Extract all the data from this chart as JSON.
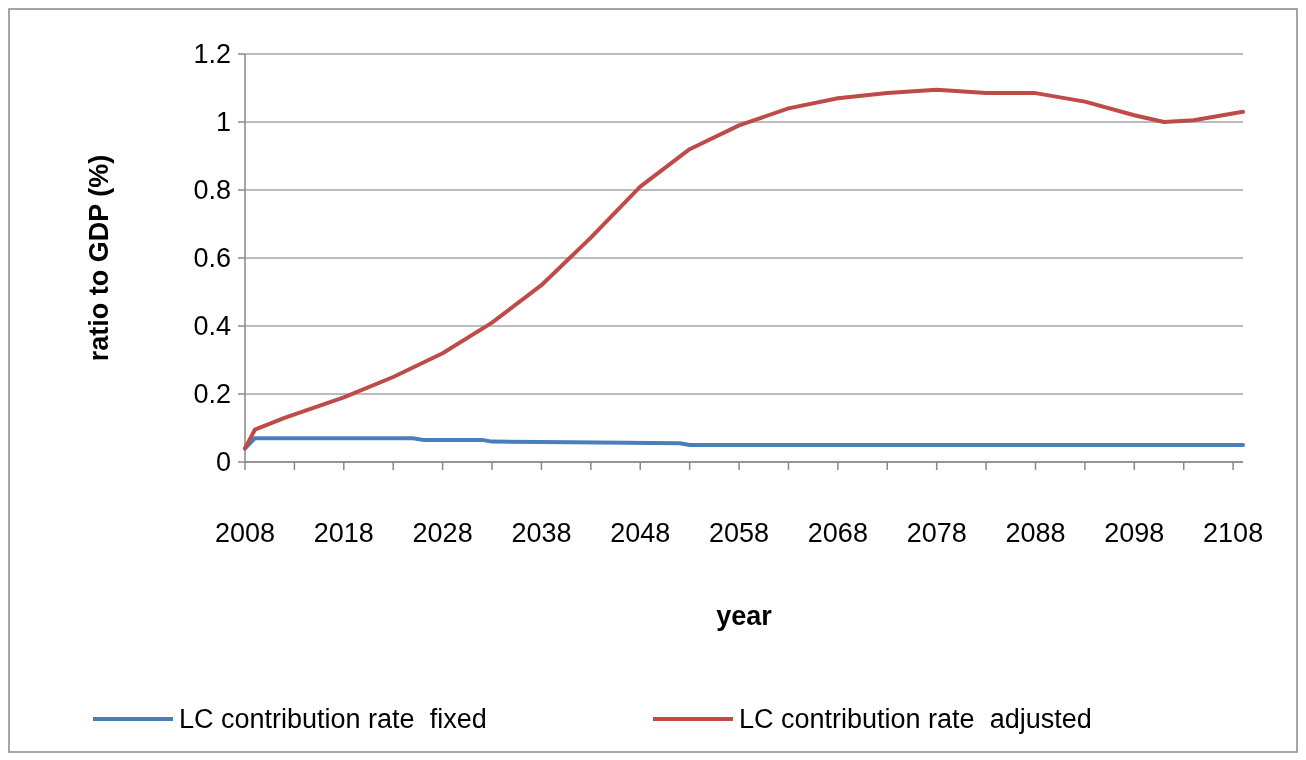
{
  "chart_data": {
    "type": "line",
    "xlabel": "year",
    "ylabel": "ratio to GDP (%)",
    "xlim": [
      2008,
      2109
    ],
    "xticks": [
      2008,
      {
        "value": 2013,
        "label": null
      },
      2018,
      {
        "value": 2023,
        "label": null
      },
      2028,
      {
        "value": 2033,
        "label": null
      },
      2038,
      {
        "value": 2043,
        "label": null
      },
      2048,
      {
        "value": 2053,
        "label": null
      },
      2058,
      {
        "value": 2063,
        "label": null
      },
      2068,
      {
        "value": 2073,
        "label": null
      },
      2078,
      {
        "value": 2083,
        "label": null
      },
      2088,
      {
        "value": 2093,
        "label": null
      },
      2098,
      {
        "value": 2103,
        "label": null
      },
      2108
    ],
    "ylim": [
      0,
      1.2
    ],
    "yticks": [
      0,
      0.2,
      0.4,
      0.6,
      0.8,
      1,
      1.2
    ],
    "grid": "y",
    "legend": "bottom",
    "marker": "none",
    "line_style": "solid",
    "series": [
      {
        "name": "LC contribution rate  fixed",
        "color": "#4a7ebb",
        "x": [
          2008,
          2009,
          2025,
          2026,
          2032,
          2033,
          2041,
          2052,
          2053,
          2109
        ],
        "values": [
          0.04,
          0.07,
          0.07,
          0.065,
          0.065,
          0.06,
          0.058,
          0.055,
          0.05,
          0.05
        ]
      },
      {
        "name": "LC contribution rate  adjusted",
        "color": "#be4b48",
        "x": [
          2008,
          2009,
          2012,
          2018,
          2023,
          2028,
          2033,
          2038,
          2043,
          2048,
          2053,
          2058,
          2063,
          2068,
          2073,
          2078,
          2083,
          2088,
          2093,
          2098,
          2101,
          2104,
          2109
        ],
        "values": [
          0.04,
          0.095,
          0.13,
          0.19,
          0.25,
          0.32,
          0.41,
          0.52,
          0.66,
          0.81,
          0.92,
          0.99,
          1.04,
          1.07,
          1.085,
          1.095,
          1.085,
          1.085,
          1.06,
          1.02,
          1.0,
          1.005,
          1.03
        ]
      }
    ]
  }
}
